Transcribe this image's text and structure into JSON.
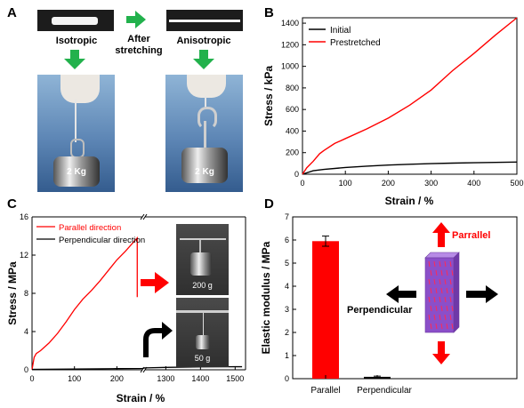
{
  "panels": {
    "a": {
      "letter": "A",
      "isotropic_label": "Isotropic",
      "after_label_line1": "After",
      "after_label_line2": "stretching",
      "anisotropic_label": "Anisotropic",
      "weight_label_left": "2 Kg",
      "weight_label_right": "2 Kg"
    },
    "b": {
      "letter": "B"
    },
    "c": {
      "letter": "C",
      "photo_top_label": "200 g",
      "photo_bottom_label": "50 g"
    },
    "d": {
      "letter": "D",
      "parallel_arrow_label": "Parrallel",
      "perpendicular_arrow_label": "Perpendicular"
    }
  },
  "colors": {
    "red": "#ff0000",
    "green": "#22b14c",
    "black": "#000000",
    "block": "#8b4fc9"
  },
  "chart_data": [
    {
      "type": "line",
      "xlabel": "Strain / %",
      "ylabel": "Stress / kPa",
      "xlim": [
        0,
        500
      ],
      "ylim": [
        0,
        1450
      ],
      "xticks": [
        0,
        100,
        200,
        300,
        400,
        500
      ],
      "yticks": [
        0,
        200,
        400,
        600,
        800,
        1000,
        1200,
        1400
      ],
      "legend_position": "top-left",
      "series": [
        {
          "name": "Initial",
          "color": "#000000",
          "x": [
            0,
            25,
            50,
            100,
            150,
            200,
            250,
            300,
            350,
            400,
            450,
            500
          ],
          "y": [
            0,
            32,
            45,
            62,
            75,
            85,
            92,
            98,
            103,
            107,
            110,
            113
          ]
        },
        {
          "name": "Prestretched",
          "color": "#ff0000",
          "x": [
            0,
            10,
            25,
            40,
            50,
            75,
            100,
            150,
            200,
            250,
            300,
            350,
            400,
            450,
            500
          ],
          "y": [
            0,
            60,
            120,
            190,
            220,
            285,
            330,
            420,
            520,
            640,
            780,
            960,
            1120,
            1290,
            1450
          ]
        }
      ]
    },
    {
      "type": "line",
      "xlabel": "Strain / %",
      "ylabel": "Stress / MPa",
      "ylim": [
        0,
        16
      ],
      "yticks": [
        0,
        4,
        8,
        12,
        16
      ],
      "xticks": [
        0,
        100,
        200,
        1300,
        1400,
        1500
      ],
      "x_break": [
        260,
        1240
      ],
      "legend_position": "top-left",
      "series": [
        {
          "name": "Parallel direction",
          "color": "#ff0000",
          "x": [
            0,
            5,
            10,
            20,
            40,
            60,
            80,
            100,
            120,
            140,
            160,
            180,
            200,
            220,
            240,
            248,
            248
          ],
          "y": [
            0,
            1.3,
            1.7,
            2.0,
            2.8,
            3.8,
            5.0,
            6.3,
            7.4,
            8.3,
            9.3,
            10.4,
            11.5,
            12.4,
            13.4,
            13.8,
            7.6
          ]
        },
        {
          "name": "Perpendicular direction",
          "color": "#000000",
          "x": [
            0,
            100,
            200,
            260,
            1240,
            1300,
            1400,
            1500,
            1520
          ],
          "y": [
            0.05,
            0.08,
            0.12,
            0.14,
            0.2,
            0.25,
            0.3,
            0.32,
            0.32
          ]
        }
      ]
    },
    {
      "type": "bar",
      "xlabel": "",
      "ylabel": "Elastic modulus / MPa",
      "categories": [
        "Parallel",
        "Perpendicular"
      ],
      "values": [
        5.95,
        0.08
      ],
      "errors": [
        0.22,
        0.03
      ],
      "ylim": [
        0,
        7
      ],
      "yticks": [
        0,
        1,
        2,
        3,
        4,
        5,
        6,
        7
      ],
      "colors": [
        "#ff0000",
        "#000000"
      ]
    }
  ]
}
